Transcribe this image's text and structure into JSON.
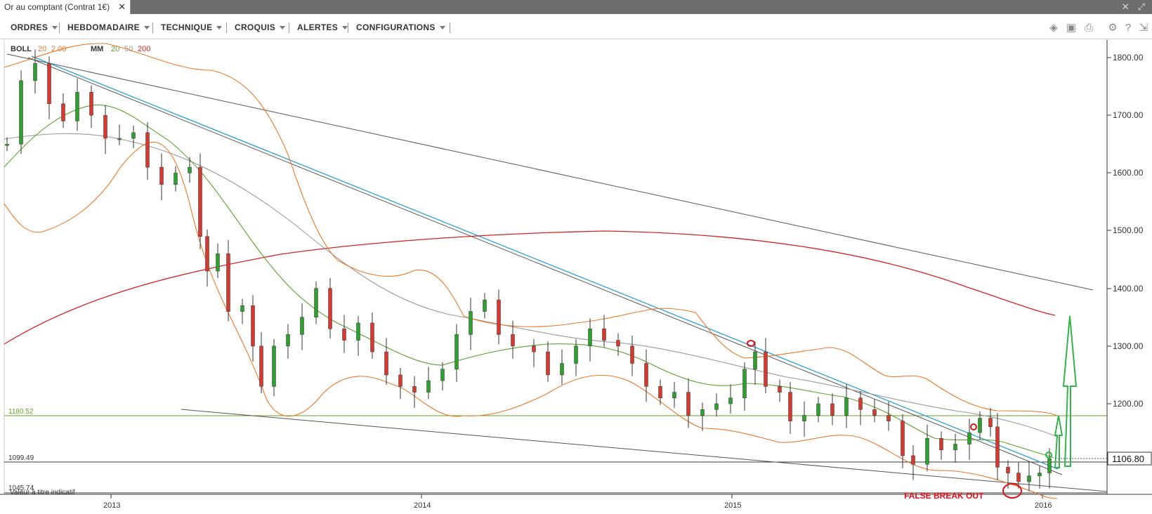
{
  "window": {
    "tab_title": "Or au comptant (Contrat 1€)",
    "close_glyph": "✕"
  },
  "menu": {
    "items": [
      "ORDRES",
      "HEBDOMADAIRE",
      "TECHNIQUE",
      "CROQUIS",
      "ALERTES",
      "CONFIGURATIONS"
    ],
    "tool_icons": [
      "layers-icon",
      "image-icon",
      "print-icon",
      "gear-icon",
      "help-icon",
      "pin-icon"
    ]
  },
  "indicators": {
    "boll_label": "BOLL",
    "boll_period": "20",
    "boll_dev": "2.00",
    "mm_label": "MM",
    "mm_periods": [
      "20",
      "50",
      "200"
    ]
  },
  "chart_data": {
    "type": "candlestick",
    "title": "",
    "y_ticks": [
      1800,
      1700,
      1600,
      1500,
      1400,
      1300,
      1200
    ],
    "y_tick_labels": [
      "1800.00",
      "1700.00",
      "1600.00",
      "1500.00",
      "1400.00",
      "1300.00",
      "1200.00"
    ],
    "ylim": [
      1030,
      1830
    ],
    "x_tick_labels": [
      "2013",
      "2014",
      "2015",
      "2016"
    ],
    "current_price": "1106.80",
    "levels": [
      {
        "label": "1180.52",
        "value": 1180.52,
        "color": "#6aa121"
      },
      {
        "label": "1099.49",
        "value": 1099.49,
        "color": "#333333"
      },
      {
        "label": "1045.74",
        "value": 1045.74,
        "color": "#333333"
      }
    ],
    "annotation": "FALSE BREAK OUT",
    "footer_note": "Valeur à titre indicatif",
    "series_colors": {
      "bollinger": "#e8782a",
      "mm20": "#5aa02c",
      "mm50": "#999999",
      "mm200": "#d32222",
      "trend_blue": "#2a9fd6",
      "trend_dark": "#444444",
      "candle_up": "#2ea02e",
      "candle_down": "#d43a30",
      "projection": "#33b44a",
      "annotation": "#e0101a"
    }
  }
}
